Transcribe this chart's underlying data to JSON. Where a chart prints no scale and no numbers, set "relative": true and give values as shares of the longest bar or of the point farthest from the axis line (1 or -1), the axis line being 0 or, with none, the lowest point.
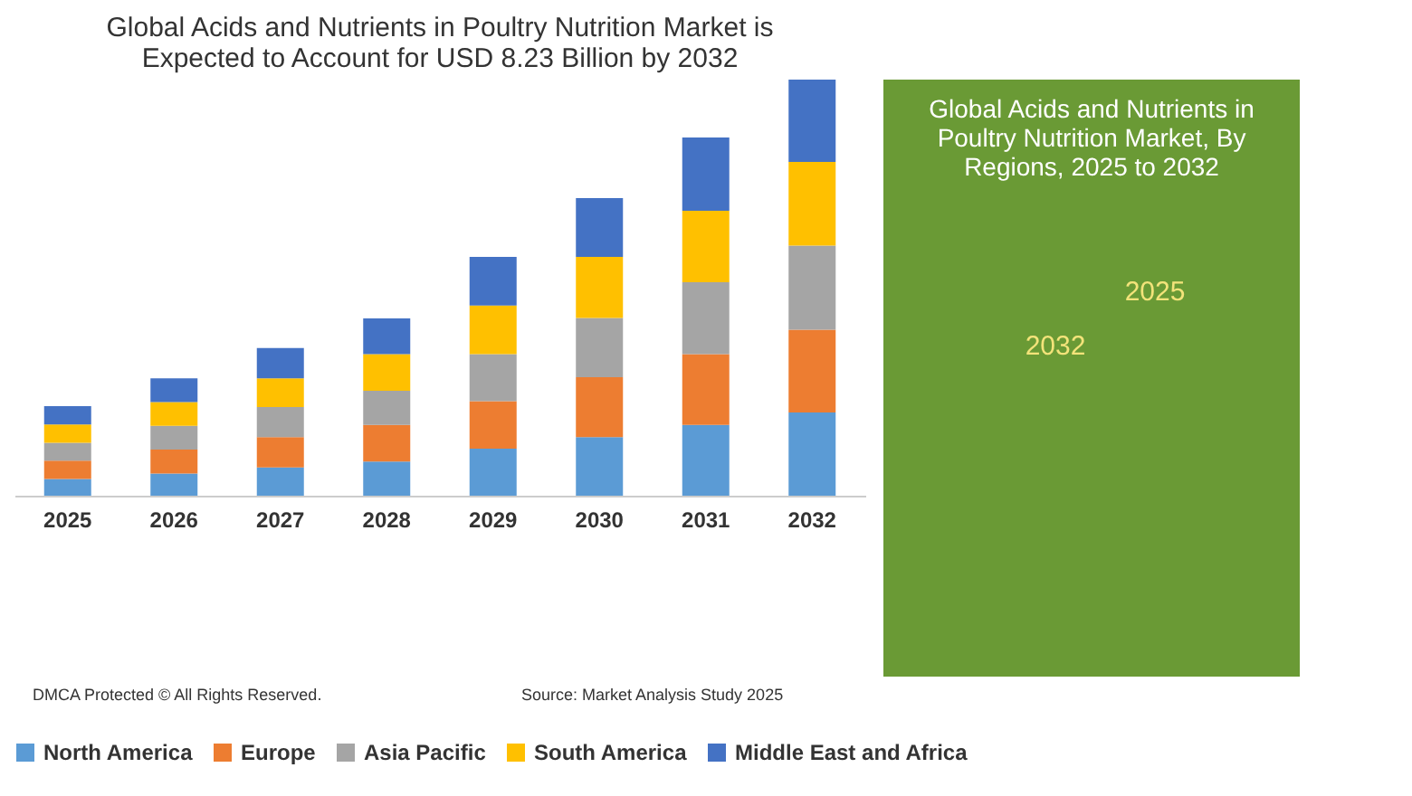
{
  "chart_data": {
    "type": "bar",
    "stacked": true,
    "relative": true,
    "legend": "bottom",
    "title": "Global Acids and Nutrients in Poultry Nutrition Market is Expected to Account for USD 8.23 Billion by 2032",
    "categories": [
      "2025",
      "2026",
      "2027",
      "2028",
      "2029",
      "2030",
      "2031",
      "2032"
    ],
    "series": [
      {
        "name": "North America",
        "color": "#5b9bd5",
        "values": [
          0.04,
          0.053,
          0.068,
          0.082,
          0.113,
          0.141,
          0.17,
          0.2
        ]
      },
      {
        "name": "Europe",
        "color": "#ed7d31",
        "values": [
          0.044,
          0.058,
          0.073,
          0.088,
          0.114,
          0.144,
          0.17,
          0.199
        ]
      },
      {
        "name": "Asia Pacific",
        "color": "#a5a5a5",
        "values": [
          0.043,
          0.057,
          0.072,
          0.082,
          0.113,
          0.142,
          0.173,
          0.202
        ]
      },
      {
        "name": "South America",
        "color": "#ffc000",
        "values": [
          0.044,
          0.057,
          0.069,
          0.088,
          0.117,
          0.147,
          0.172,
          0.201
        ]
      },
      {
        "name": "Middle East and Africa",
        "color": "#4472c4",
        "values": [
          0.044,
          0.057,
          0.073,
          0.086,
          0.117,
          0.141,
          0.176,
          0.198
        ]
      }
    ],
    "annotations": [
      "Global Acids and Nutrients in Poultry Nutrition Market, By Regions, 2025 to 2032",
      "2032",
      "2025",
      "DMCA Protected © All Rights Reserved.",
      "Source: Market Analysis Study 2025"
    ]
  }
}
